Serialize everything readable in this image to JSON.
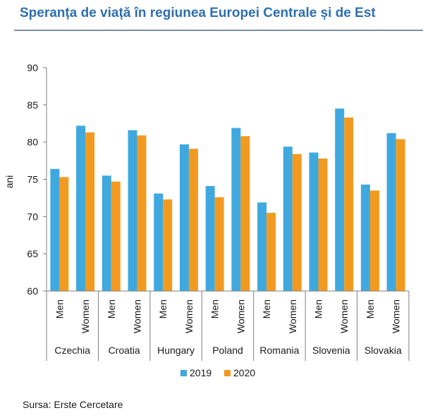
{
  "title": "Speranța de viață în regiunea Europei Centrale și de Est",
  "source": "Sursa: Erste Cercetare",
  "colors": {
    "2019": "#3fa9df",
    "2020": "#f29a1f",
    "title": "#2e6fb0"
  },
  "chart_data": {
    "type": "bar",
    "title": "Speranța de viață în regiunea Europei Centrale și de Est",
    "ylabel": "ani",
    "xlabel": "",
    "ylim": [
      60,
      90
    ],
    "yticks": [
      60,
      65,
      70,
      75,
      80,
      85,
      90
    ],
    "grid": false,
    "legend_position": "bottom",
    "groups": [
      "Czechia",
      "Croatia",
      "Hungary",
      "Poland",
      "Romania",
      "Slovenia",
      "Slovakia"
    ],
    "subcategories": [
      "Men",
      "Women"
    ],
    "categories": [
      "Czechia Men",
      "Czechia Women",
      "Croatia Men",
      "Croatia Women",
      "Hungary Men",
      "Hungary Women",
      "Poland Men",
      "Poland Women",
      "Romania Men",
      "Romania Women",
      "Slovenia Men",
      "Slovenia Women",
      "Slovakia Men",
      "Slovakia Women"
    ],
    "series": [
      {
        "name": "2019",
        "values": [
          76.4,
          82.2,
          75.5,
          81.6,
          73.1,
          79.7,
          74.1,
          81.9,
          71.9,
          79.4,
          78.6,
          84.5,
          74.3,
          81.2
        ]
      },
      {
        "name": "2020",
        "values": [
          75.3,
          81.3,
          74.7,
          80.9,
          72.3,
          79.1,
          72.6,
          80.8,
          70.5,
          78.4,
          77.8,
          83.3,
          73.5,
          80.4
        ]
      }
    ]
  }
}
